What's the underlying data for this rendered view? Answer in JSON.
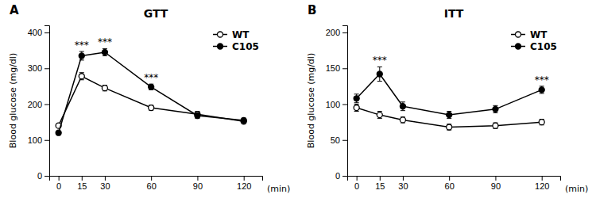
{
  "chart_data": [
    {
      "type": "line",
      "title": "GTT",
      "panel_label": "A",
      "x_label": "(min)",
      "y_label": "Blood glucose (mg/dl)",
      "x": [
        0,
        15,
        30,
        60,
        90,
        120
      ],
      "xlim": [
        -6,
        132
      ],
      "xticks": [
        0,
        15,
        30,
        60,
        90,
        120
      ],
      "ylim": [
        0,
        420
      ],
      "yticks": [
        0,
        100,
        200,
        300,
        400
      ],
      "grid": false,
      "legend": "upper right",
      "series": [
        {
          "name": "WT",
          "color": "#000000",
          "marker": "circle-open",
          "line_style": "solid",
          "values": [
            140,
            278,
            245,
            190,
            172,
            152
          ],
          "errors": [
            5,
            10,
            8,
            7,
            8,
            6
          ]
        },
        {
          "name": "C105",
          "color": "#000000",
          "marker": "circle",
          "line_style": "solid",
          "values": [
            120,
            335,
            345,
            248,
            168,
            155
          ],
          "errors": [
            5,
            12,
            10,
            8,
            8,
            6
          ]
        }
      ],
      "annotations": [
        {
          "text": "***",
          "x": 15
        },
        {
          "text": "***",
          "x": 30
        },
        {
          "text": "***",
          "x": 60
        }
      ]
    },
    {
      "type": "line",
      "title": "ITT",
      "panel_label": "B",
      "x_label": "(min)",
      "y_label": "Blood glucose (mg/dl)",
      "x": [
        0,
        15,
        30,
        60,
        90,
        120
      ],
      "xlim": [
        -6,
        132
      ],
      "xticks": [
        0,
        15,
        30,
        60,
        90,
        120
      ],
      "ylim": [
        0,
        210
      ],
      "yticks": [
        0,
        50,
        100,
        150,
        200
      ],
      "grid": false,
      "legend": "upper right",
      "series": [
        {
          "name": "WT",
          "color": "#000000",
          "marker": "circle-open",
          "line_style": "solid",
          "values": [
            95,
            85,
            78,
            68,
            70,
            75
          ],
          "errors": [
            5,
            5,
            4,
            4,
            4,
            4
          ]
        },
        {
          "name": "C105",
          "color": "#000000",
          "marker": "circle",
          "line_style": "solid",
          "values": [
            108,
            142,
            97,
            85,
            93,
            120
          ],
          "errors": [
            6,
            10,
            6,
            5,
            5,
            5
          ]
        }
      ],
      "annotations": [
        {
          "text": "***",
          "x": 15
        },
        {
          "text": "***",
          "x": 120
        }
      ]
    }
  ]
}
